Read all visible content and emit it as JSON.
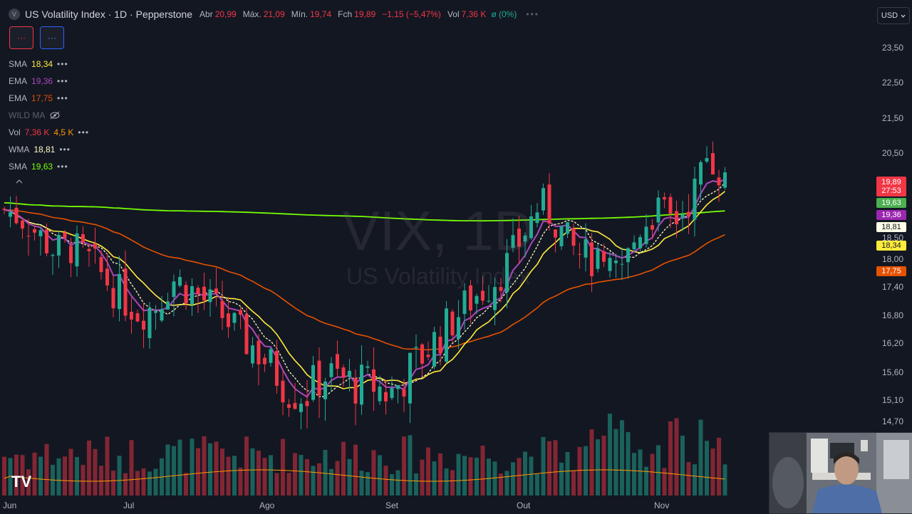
{
  "symbol_logo": "V",
  "title": "US Volatility Index · 1D · Pepperstone",
  "ohlc": {
    "o_label": "Abr",
    "o": "20,99",
    "h_label": "Máx.",
    "h": "21,09",
    "l_label": "Mín.",
    "l": "19,74",
    "c_label": "Fch",
    "c": "19,89",
    "change": "−1,15 (−5,47%)",
    "vol_label": "Vol",
    "vol": "7,36 K",
    "vol_suffix": "ø (0%)",
    "more": "•••"
  },
  "indicator_buttons": [
    "···",
    "···"
  ],
  "legend": [
    {
      "name": "SMA",
      "value": "18,34",
      "color": "#ffeb3b",
      "hidden": false
    },
    {
      "name": "EMA",
      "value": "19,36",
      "color": "#ab47bc",
      "hidden": false
    },
    {
      "name": "EMA",
      "value": "17,75",
      "color": "#e65100",
      "hidden": false
    },
    {
      "name": "WILD MA",
      "value": "",
      "color": "#5d606b",
      "hidden": true
    },
    {
      "name": "Vol",
      "value": "7,36 K",
      "value2": "4,5 K",
      "color": "#f23645",
      "color2": "#ff9800",
      "hidden": false
    },
    {
      "name": "WMA",
      "value": "18,81",
      "color": "#fff9c4",
      "hidden": false
    },
    {
      "name": "SMA",
      "value": "19,63",
      "color": "#76ff03",
      "hidden": false
    }
  ],
  "collapse_icon": "chevron-up-icon",
  "watermark": {
    "big": "VIX, 1D",
    "small": "US Volatility Index"
  },
  "currency": "USD",
  "y_ticks": [
    "23,50",
    "22,50",
    "21,50",
    "20,50",
    "18,50",
    "18,00",
    "17,40",
    "16,80",
    "16,20",
    "15,60",
    "15,10",
    "14,70"
  ],
  "price_badges": [
    {
      "value": "19,89",
      "sub": "27:53",
      "bg": "#f23645",
      "fg": "#ffffff"
    },
    {
      "value": "19,63",
      "bg": "#4caf50",
      "fg": "#ffffff"
    },
    {
      "value": "19,36",
      "bg": "#9c27b0",
      "fg": "#ffffff"
    },
    {
      "value": "18,81",
      "bg": "#fffde7",
      "fg": "#131722"
    },
    {
      "value": "18,34",
      "bg": "#ffeb3b",
      "fg": "#131722"
    },
    {
      "value": "17,75",
      "bg": "#e65100",
      "fg": "#ffffff"
    }
  ],
  "x_ticks": [
    "Jun",
    "Jul",
    "Ago",
    "Set",
    "Out",
    "Nov"
  ],
  "brand": "TV",
  "colors": {
    "up": "#22ab94",
    "down": "#f23645",
    "bg": "#131722"
  },
  "chart_data": {
    "type": "candlestick",
    "symbol": "VIX",
    "ohlc_series": [
      {
        "name": "VIX",
        "close_trend": [
          19.2,
          19.0,
          18.6,
          18.2,
          18.3,
          18.0,
          17.6,
          17.2,
          16.9,
          17.0,
          17.6,
          17.4,
          17.1,
          16.8,
          16.4,
          16.1,
          15.7,
          15.3,
          15.2,
          15.6,
          15.5,
          15.4,
          15.4,
          15.2,
          15.6,
          16.0,
          16.4,
          16.8,
          17.2,
          17.5,
          17.9,
          18.6,
          19.4,
          18.8,
          18.2,
          18.0,
          17.6,
          17.9,
          18.8,
          19.2,
          18.9,
          19.5,
          20.6,
          19.89
        ]
      }
    ],
    "overlays": [
      {
        "name": "SMA",
        "last": "18,34",
        "color": "#ffeb3b"
      },
      {
        "name": "EMA",
        "last": "19,36",
        "color": "#ab47bc"
      },
      {
        "name": "EMA",
        "last": "17,75",
        "color": "#e65100"
      },
      {
        "name": "WMA",
        "last": "18,81",
        "color": "#fff9c4"
      },
      {
        "name": "SMA",
        "last": "19,63",
        "color": "#76ff03"
      }
    ],
    "y_axis_ticks": [
      "23,50",
      "22,50",
      "21,50",
      "20,50",
      "18,50",
      "18,00",
      "17,40",
      "16,80",
      "16,20",
      "15,60",
      "15,10",
      "14,70"
    ],
    "x_axis_ticks": [
      "Jun",
      "Jul",
      "Ago",
      "Set",
      "Out",
      "Nov"
    ],
    "grid": false
  }
}
